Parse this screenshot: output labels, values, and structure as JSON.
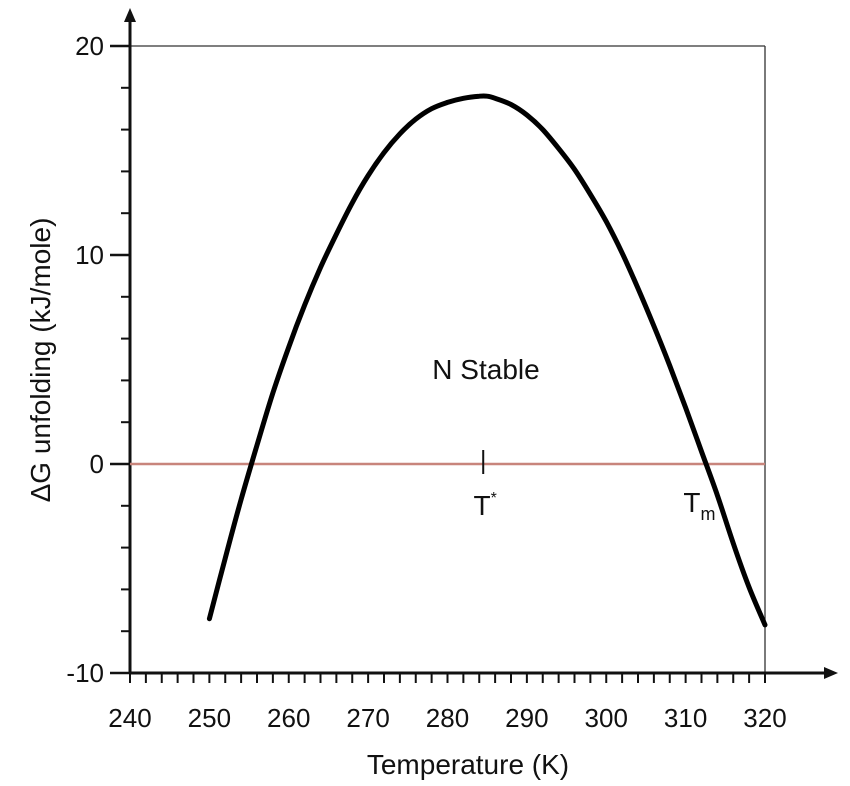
{
  "chart_data": {
    "type": "line",
    "title": "",
    "xlabel": "Temperature (K)",
    "ylabel": "ΔG unfolding (kJ/mole)",
    "xlim": [
      240,
      320
    ],
    "ylim": [
      -10,
      20
    ],
    "x_ticks": [
      240,
      250,
      260,
      270,
      280,
      290,
      300,
      310,
      320
    ],
    "y_ticks": [
      -10,
      0,
      10,
      20
    ],
    "grid": false,
    "series": [
      {
        "x": [
          250,
          252,
          254,
          256,
          258,
          260,
          262,
          264,
          266,
          268,
          270,
          272,
          274,
          276,
          278,
          280,
          282,
          284,
          285,
          286,
          288,
          290,
          292,
          294,
          296,
          298,
          300,
          302,
          304,
          306,
          308,
          310,
          312,
          314,
          316,
          318,
          320
        ],
        "y": [
          -7.4,
          -4.5,
          -1.7,
          0.9,
          3.4,
          5.6,
          7.6,
          9.4,
          11.0,
          12.5,
          13.8,
          14.9,
          15.8,
          16.5,
          17.0,
          17.3,
          17.5,
          17.6,
          17.6,
          17.5,
          17.2,
          16.7,
          16.0,
          15.1,
          14.1,
          12.9,
          11.6,
          10.1,
          8.4,
          6.6,
          4.7,
          2.7,
          0.6,
          -1.5,
          -3.8,
          -5.9,
          -7.7
        ],
        "color": "#000000"
      }
    ],
    "reference_line": {
      "y": 0,
      "color": "#c8857c"
    },
    "annotations": {
      "region_label": "N Stable",
      "t_star_base": "T",
      "t_star_sup": "*",
      "t_star_x": 284.5,
      "tm_base": "T",
      "tm_sub": "m",
      "tm_x": 313.5
    }
  }
}
